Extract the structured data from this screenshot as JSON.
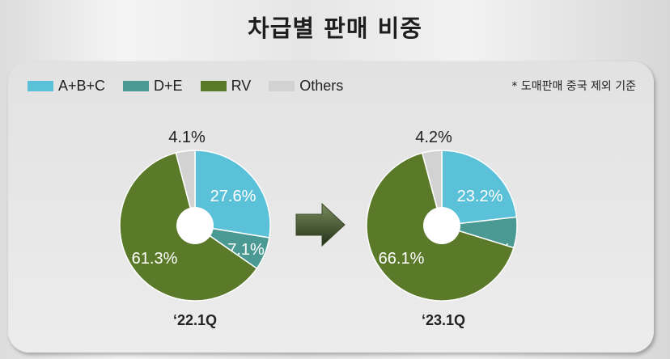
{
  "title": "차급별 판매 비중",
  "note": "* 도매판매 중국 제외 기준",
  "legend": [
    {
      "label": "A+B+C",
      "color": "#5bc1d8"
    },
    {
      "label": "D+E",
      "color": "#4a9a93"
    },
    {
      "label": "RV",
      "color": "#5a7a2a"
    },
    {
      "label": "Others",
      "color": "#d2d2d2"
    }
  ],
  "chart_data": {
    "type": "pie",
    "categories": [
      "A+B+C",
      "D+E",
      "RV",
      "Others"
    ],
    "series": [
      {
        "name": "‘22.1Q",
        "values": [
          27.6,
          7.1,
          61.3,
          4.1
        ],
        "labels": [
          "27.6%",
          "7.1%",
          "61.3%",
          "4.1%"
        ]
      },
      {
        "name": "‘23.1Q",
        "values": [
          23.2,
          6.6,
          66.1,
          4.2
        ],
        "labels": [
          "23.2%",
          "6.6%",
          "66.1%",
          "4.2%"
        ]
      }
    ]
  }
}
